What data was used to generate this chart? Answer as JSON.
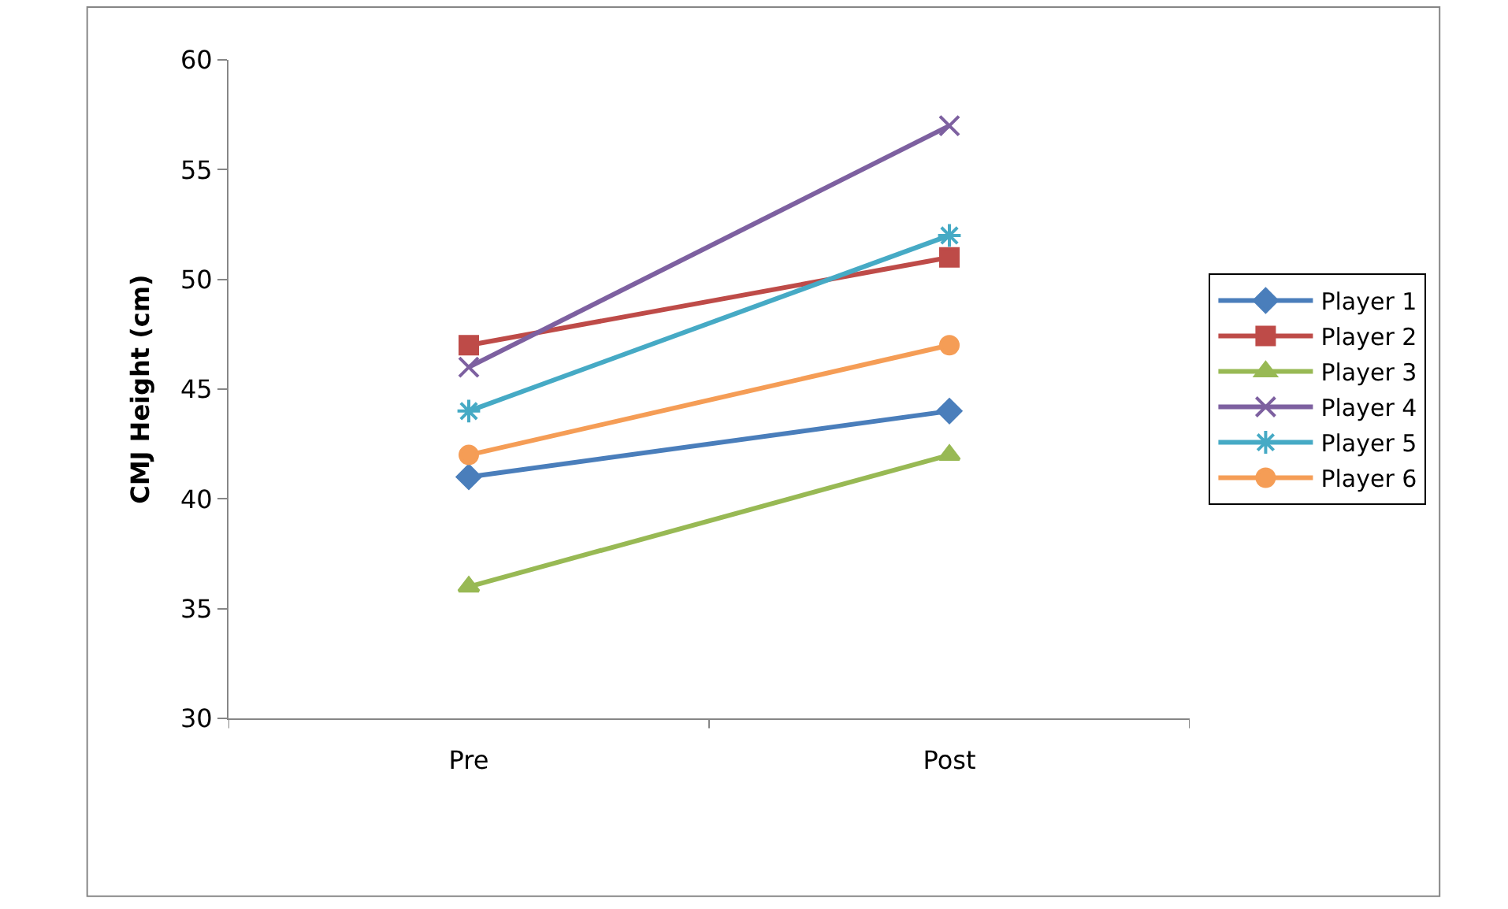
{
  "chart_data": {
    "type": "line",
    "ylabel": "CMJ Height (cm)",
    "categories": [
      "Pre",
      "Post"
    ],
    "series": [
      {
        "name": "Player 1",
        "color": "#4a7ebb",
        "values": [
          41,
          44
        ],
        "marker": "diamond"
      },
      {
        "name": "Player 2",
        "color": "#be4b48",
        "values": [
          47,
          51
        ],
        "marker": "square"
      },
      {
        "name": "Player 3",
        "color": "#98b954",
        "values": [
          36,
          42
        ],
        "marker": "triangle"
      },
      {
        "name": "Player 4",
        "color": "#7d60a0",
        "values": [
          46,
          57
        ],
        "marker": "cross"
      },
      {
        "name": "Player 5",
        "color": "#46aac5",
        "values": [
          44,
          52
        ],
        "marker": "cross"
      },
      {
        "name": "Player 6",
        "color": "#f59d56",
        "values": [
          42,
          47
        ],
        "marker": "circle"
      }
    ],
    "ylim": [
      30,
      60
    ],
    "yticks": [
      30,
      35,
      40,
      45,
      50,
      55,
      60
    ],
    "legend": "right",
    "line_style": "solid"
  }
}
